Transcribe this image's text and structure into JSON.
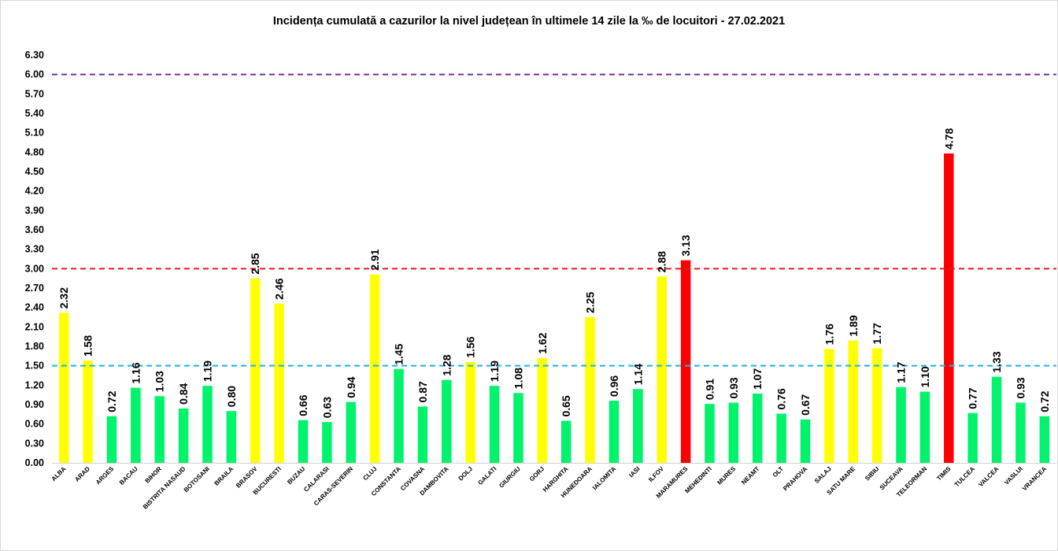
{
  "chart_data": {
    "type": "bar",
    "title": "Incidența cumulată a cazurilor la nivel județean în ultimele 14 zile la ‰ de locuitori - 27.02.2021",
    "xlabel": "",
    "ylabel": "",
    "ylim": [
      0,
      6.3
    ],
    "ytick_step": 0.3,
    "y_tick_labels": [
      "0.00",
      "0.30",
      "0.60",
      "0.90",
      "1.20",
      "1.50",
      "1.80",
      "2.10",
      "2.40",
      "2.70",
      "3.00",
      "3.30",
      "3.60",
      "3.90",
      "4.20",
      "4.50",
      "4.80",
      "5.10",
      "5.40",
      "5.70",
      "6.00",
      "6.30"
    ],
    "grid": false,
    "legend": "none",
    "categories": [
      "ALBA",
      "ARAD",
      "ARGES",
      "BACAU",
      "BIHOR",
      "BISTRITA NASAUD",
      "BOTOSANI",
      "BRAILA",
      "BRASOV",
      "BUCURESTI",
      "BUZAU",
      "CALARASI",
      "CARAS-SEVERIN",
      "CLUJ",
      "CONSTANTA",
      "COVASNA",
      "DAMBOVITA",
      "DOLJ",
      "GALATI",
      "GIURGIU",
      "GORJ",
      "HARGHITA",
      "HUNEDOARA",
      "IALOMITA",
      "IASI",
      "ILFOV",
      "MARAMURES",
      "MEHEDINTI",
      "MURES",
      "NEAMT",
      "OLT",
      "PRAHOVA",
      "SALAJ",
      "SATU MARE",
      "SIBIU",
      "SUCEAVA",
      "TELEORMAN",
      "TIMIS",
      "TULCEA",
      "VALCEA",
      "VASLUI",
      "VRANCEA"
    ],
    "values": [
      2.32,
      1.58,
      0.72,
      1.16,
      1.03,
      0.84,
      1.19,
      0.8,
      2.85,
      2.46,
      0.66,
      0.63,
      0.94,
      2.91,
      1.45,
      0.87,
      1.28,
      1.56,
      1.19,
      1.08,
      1.62,
      0.65,
      2.25,
      0.96,
      1.14,
      2.88,
      3.13,
      0.91,
      0.93,
      1.07,
      0.76,
      0.67,
      1.76,
      1.89,
      1.77,
      1.17,
      1.1,
      4.78,
      0.77,
      1.33,
      0.93,
      0.72
    ],
    "value_labels": [
      "2.32",
      "1.58",
      "0.72",
      "1.16",
      "1.03",
      "0.84",
      "1.19",
      "0.80",
      "2.85",
      "2.46",
      "0.66",
      "0.63",
      "0.94",
      "2.91",
      "1.45",
      "0.87",
      "1.28",
      "1.56",
      "1.19",
      "1.08",
      "1.62",
      "0.65",
      "2.25",
      "0.96",
      "1.14",
      "2.88",
      "3.13",
      "0.91",
      "0.93",
      "1.07",
      "0.76",
      "0.67",
      "1.76",
      "1.89",
      "1.77",
      "1.17",
      "1.10",
      "4.78",
      "0.77",
      "1.33",
      "0.93",
      "0.72"
    ],
    "reference_lines": [
      {
        "value": 6.0,
        "color": "#7030a0",
        "style": "dashed"
      },
      {
        "value": 3.0,
        "color": "#e41a1a",
        "style": "dashed"
      },
      {
        "value": 1.5,
        "color": "#1fb0e6",
        "style": "dashed"
      }
    ],
    "colors": {
      "green": "#00f36b",
      "yellow": "#ffff00",
      "red": "#ff0000"
    }
  }
}
